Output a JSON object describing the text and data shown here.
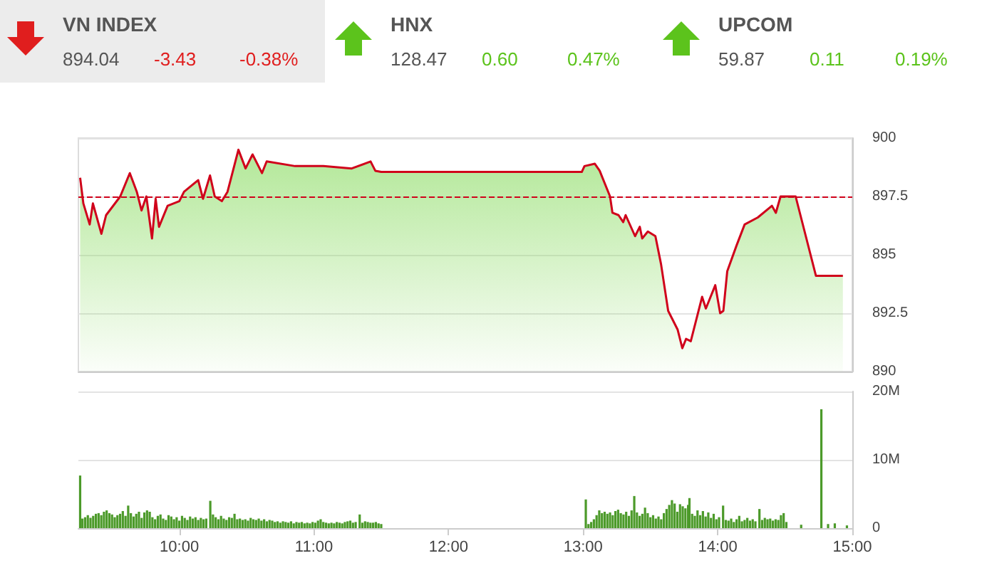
{
  "chart_data": [
    {
      "type": "other",
      "annotations": [
        "VN INDEX",
        "894.04",
        "-3.43",
        "-0.38%",
        "HNX",
        "128.47",
        "0.60",
        "0.47%",
        "UPCOM",
        "59.87",
        "0.11",
        "0.19%"
      ]
    },
    {
      "type": "area",
      "xlim": [
        9.25,
        15
      ],
      "ylim": [
        890,
        900
      ],
      "yticks": [
        890,
        892.5,
        895,
        897.5,
        900
      ],
      "tick_labels": "y",
      "grid": "y",
      "marker": "none",
      "ref_lines": [
        {
          "axis": "y",
          "value": 897.5,
          "color": "#d0021b",
          "line_style": "dashed"
        }
      ],
      "x": [
        9.263,
        9.287,
        9.334,
        9.358,
        9.421,
        9.456,
        9.561,
        9.632,
        9.684,
        9.719,
        9.755,
        9.797,
        9.824,
        9.849,
        9.913,
        10.0,
        10.035,
        10.14,
        10.176,
        10.228,
        10.263,
        10.316,
        10.358,
        10.439,
        10.492,
        10.544,
        10.614,
        10.649,
        10.86,
        11.07,
        11.281,
        11.421,
        11.456,
        11.5,
        12.99,
        13.01,
        13.087,
        13.123,
        13.2,
        13.218,
        13.263,
        13.298,
        13.316,
        13.386,
        13.421,
        13.439,
        13.481,
        13.537,
        13.579,
        13.632,
        13.702,
        13.737,
        13.765,
        13.8,
        13.884,
        13.912,
        13.982,
        14.018,
        14.042,
        14.071,
        14.14,
        14.2,
        14.298,
        14.403,
        14.432,
        14.467,
        14.579,
        14.73,
        14.93
      ],
      "series": [
        {
          "color": "#d0021b",
          "values": [
            898.3,
            897.2,
            896.3,
            897.2,
            895.9,
            896.7,
            897.5,
            898.5,
            897.7,
            896.9,
            897.5,
            895.7,
            897.4,
            896.2,
            897.1,
            897.3,
            897.7,
            898.2,
            897.4,
            898.4,
            897.5,
            897.3,
            897.7,
            899.5,
            898.7,
            899.3,
            898.5,
            899.0,
            898.8,
            898.8,
            898.7,
            899.0,
            898.6,
            898.55,
            898.55,
            898.8,
            898.9,
            898.6,
            897.5,
            896.8,
            896.7,
            896.4,
            896.7,
            895.8,
            896.2,
            895.7,
            896.0,
            895.8,
            894.6,
            892.6,
            891.8,
            891.0,
            891.4,
            891.3,
            893.2,
            892.7,
            893.7,
            892.5,
            892.6,
            894.3,
            895.4,
            896.3,
            896.6,
            897.1,
            896.8,
            897.5,
            897.5,
            894.1,
            894.1
          ]
        }
      ]
    },
    {
      "type": "bar",
      "xlim": [
        9.25,
        15
      ],
      "xticks": [
        {
          "value": 10,
          "label": "10:00"
        },
        {
          "value": 11,
          "label": "11:00"
        },
        {
          "value": 12,
          "label": "12:00"
        },
        {
          "value": 13,
          "label": "13:00"
        },
        {
          "value": 14,
          "label": "14:00"
        },
        {
          "value": 15,
          "label": "15:00"
        }
      ],
      "ylim": [
        0,
        20
      ],
      "yticks": [
        0,
        {
          "value": 10,
          "label": "10M"
        },
        {
          "value": 20,
          "label": "20M"
        }
      ],
      "grid": "y",
      "x": [
        9.263,
        9.28,
        9.3,
        9.32,
        9.34,
        9.36,
        9.38,
        9.4,
        9.42,
        9.44,
        9.46,
        9.48,
        9.5,
        9.52,
        9.54,
        9.56,
        9.58,
        9.6,
        9.62,
        9.64,
        9.66,
        9.68,
        9.7,
        9.72,
        9.74,
        9.76,
        9.78,
        9.8,
        9.82,
        9.84,
        9.86,
        9.88,
        9.9,
        9.92,
        9.94,
        9.96,
        9.98,
        10.0,
        10.02,
        10.04,
        10.06,
        10.08,
        10.1,
        10.12,
        10.14,
        10.16,
        10.18,
        10.2,
        10.23,
        10.25,
        10.27,
        10.29,
        10.31,
        10.33,
        10.35,
        10.37,
        10.39,
        10.41,
        10.43,
        10.45,
        10.47,
        10.49,
        10.51,
        10.53,
        10.55,
        10.57,
        10.59,
        10.61,
        10.63,
        10.65,
        10.67,
        10.69,
        10.71,
        10.73,
        10.75,
        10.77,
        10.79,
        10.81,
        10.83,
        10.85,
        10.87,
        10.89,
        10.91,
        10.93,
        10.95,
        10.97,
        10.99,
        11.01,
        11.03,
        11.05,
        11.07,
        11.09,
        11.11,
        11.13,
        11.15,
        11.17,
        11.19,
        11.21,
        11.23,
        11.25,
        11.27,
        11.29,
        11.31,
        11.34,
        11.36,
        11.38,
        11.4,
        11.42,
        11.44,
        11.46,
        11.48,
        11.5,
        13.02,
        13.04,
        13.06,
        13.08,
        13.1,
        13.12,
        13.14,
        13.16,
        13.18,
        13.2,
        13.22,
        13.24,
        13.26,
        13.28,
        13.3,
        13.32,
        13.34,
        13.36,
        13.38,
        13.4,
        13.42,
        13.44,
        13.46,
        13.48,
        13.5,
        13.52,
        13.54,
        13.56,
        13.58,
        13.6,
        13.62,
        13.64,
        13.66,
        13.68,
        13.7,
        13.72,
        13.74,
        13.76,
        13.78,
        13.79,
        13.81,
        13.83,
        13.85,
        13.87,
        13.89,
        13.91,
        13.93,
        13.95,
        13.97,
        13.99,
        14.01,
        14.04,
        14.06,
        14.08,
        14.1,
        14.12,
        14.14,
        14.16,
        14.18,
        14.2,
        14.22,
        14.24,
        14.26,
        14.28,
        14.31,
        14.33,
        14.35,
        14.37,
        14.39,
        14.41,
        14.43,
        14.45,
        14.47,
        14.49,
        14.51,
        14.62,
        14.77,
        14.82,
        14.87,
        14.96
      ],
      "series": [
        {
          "color": "#4c9a2a",
          "values": [
            7.7,
            1.4,
            1.6,
            1.9,
            1.5,
            1.8,
            2.1,
            2.2,
            1.9,
            2.4,
            2.6,
            2.2,
            2.0,
            1.6,
            1.9,
            2.1,
            2.5,
            1.8,
            3.3,
            2.2,
            1.7,
            2.1,
            2.4,
            1.5,
            2.3,
            2.6,
            2.4,
            1.6,
            1.3,
            1.8,
            2.0,
            1.4,
            1.2,
            1.9,
            1.7,
            1.3,
            1.6,
            1.1,
            1.8,
            1.5,
            1.2,
            1.7,
            1.4,
            1.6,
            1.2,
            1.5,
            1.3,
            1.4,
            4.0,
            2.0,
            1.6,
            1.3,
            1.8,
            1.4,
            1.2,
            1.6,
            1.5,
            2.1,
            1.3,
            1.4,
            1.2,
            1.3,
            1.1,
            1.5,
            1.3,
            1.2,
            1.4,
            1.1,
            1.3,
            1.0,
            1.2,
            1.1,
            0.9,
            1.0,
            0.8,
            1.0,
            0.9,
            0.8,
            1.0,
            0.7,
            0.9,
            0.8,
            0.9,
            0.7,
            0.8,
            0.7,
            0.9,
            0.8,
            1.1,
            1.3,
            0.9,
            0.8,
            0.7,
            0.8,
            0.7,
            0.9,
            0.8,
            0.7,
            0.9,
            1.0,
            1.1,
            0.8,
            0.9,
            2.0,
            0.8,
            1.0,
            0.9,
            0.8,
            0.8,
            0.9,
            0.7,
            0.6,
            4.2,
            0.6,
            0.9,
            1.3,
            1.9,
            2.6,
            2.2,
            2.4,
            2.1,
            2.3,
            1.9,
            2.5,
            2.7,
            2.2,
            2.0,
            2.4,
            1.8,
            2.6,
            4.7,
            2.3,
            1.8,
            2.1,
            3.0,
            2.2,
            1.6,
            1.9,
            1.4,
            1.7,
            1.3,
            2.2,
            2.8,
            3.4,
            4.1,
            3.6,
            2.4,
            3.5,
            3.2,
            2.9,
            3.4,
            4.4,
            2.1,
            1.8,
            2.6,
            1.9,
            2.5,
            1.7,
            2.3,
            1.5,
            2.1,
            1.3,
            1.6,
            3.3,
            1.2,
            1.1,
            1.4,
            0.9,
            1.3,
            1.8,
            1.0,
            1.2,
            1.5,
            1.1,
            1.3,
            1.0,
            2.8,
            1.2,
            1.5,
            1.3,
            1.4,
            1.1,
            1.3,
            1.2,
            1.9,
            2.2,
            0.9,
            0.5,
            17.4,
            0.6,
            0.7,
            0.4
          ]
        }
      ]
    }
  ]
}
